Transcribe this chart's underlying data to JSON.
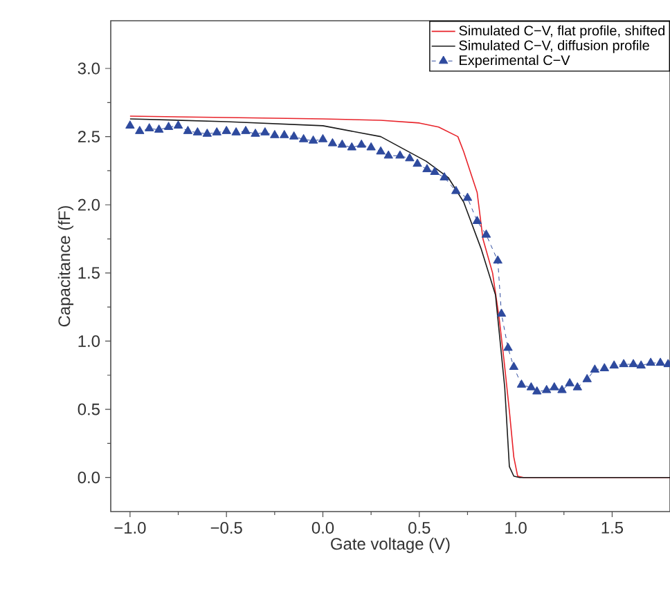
{
  "chart_data": {
    "type": "line",
    "xlabel": "Gate voltage (V)",
    "ylabel": "Capacitance (fF)",
    "xlim": [
      -1.1,
      1.8
    ],
    "ylim": [
      -0.25,
      3.35
    ],
    "xticks": [
      {
        "value": -1.0,
        "label": "−1.0"
      },
      {
        "value": -0.5,
        "label": "−0.5"
      },
      {
        "value": 0.0,
        "label": "0.0"
      },
      {
        "value": 0.5,
        "label": "0.5"
      },
      {
        "value": 1.0,
        "label": "1.0"
      },
      {
        "value": 1.5,
        "label": "1.5"
      }
    ],
    "yticks": [
      {
        "value": 0.0,
        "label": "0.0"
      },
      {
        "value": 0.5,
        "label": "0.5"
      },
      {
        "value": 1.0,
        "label": "1.0"
      },
      {
        "value": 1.5,
        "label": "1.5"
      },
      {
        "value": 2.0,
        "label": "2.0"
      },
      {
        "value": 2.5,
        "label": "2.5"
      },
      {
        "value": 3.0,
        "label": "3.0"
      }
    ],
    "legend": "top right",
    "grid": false,
    "series": [
      {
        "name": "Simulated C−V, flat profile, shifted",
        "color": "#e8232a",
        "marker": "none",
        "line_style": "solid",
        "x": [
          -1.0,
          -0.5,
          0.0,
          0.3,
          0.5,
          0.6,
          0.7,
          0.73,
          0.8,
          0.83,
          0.88,
          0.914,
          0.94,
          0.967,
          0.99,
          1.01,
          1.04,
          1.2,
          1.8
        ],
        "values": [
          2.65,
          2.64,
          2.63,
          2.62,
          2.6,
          2.57,
          2.5,
          2.39,
          2.09,
          1.75,
          1.5,
          1.17,
          0.85,
          0.49,
          0.15,
          0.01,
          0.0,
          0.0,
          0.0
        ]
      },
      {
        "name": "Simulated C−V, diffusion profile",
        "color": "#1a1a1a",
        "marker": "none",
        "line_style": "solid",
        "x": [
          -1.0,
          -0.5,
          0.0,
          0.3,
          0.535,
          0.65,
          0.73,
          0.82,
          0.895,
          0.943,
          0.967,
          0.99,
          1.02,
          1.2,
          1.8
        ],
        "values": [
          2.63,
          2.61,
          2.58,
          2.5,
          2.32,
          2.2,
          2.02,
          1.68,
          1.34,
          0.66,
          0.08,
          0.01,
          0.0,
          0.0,
          0.0
        ]
      },
      {
        "name": "Experimental C−V",
        "color": "#2e4a9e",
        "marker": "triangle",
        "line_style": "dashed",
        "x": [
          -1.0,
          -0.95,
          -0.9,
          -0.85,
          -0.8,
          -0.75,
          -0.7,
          -0.65,
          -0.6,
          -0.55,
          -0.5,
          -0.45,
          -0.4,
          -0.35,
          -0.3,
          -0.25,
          -0.2,
          -0.15,
          -0.1,
          -0.05,
          0.0,
          0.05,
          0.1,
          0.15,
          0.2,
          0.25,
          0.3,
          0.34,
          0.4,
          0.45,
          0.49,
          0.54,
          0.58,
          0.63,
          0.69,
          0.75,
          0.8,
          0.847,
          0.907,
          0.926,
          0.96,
          0.99,
          1.03,
          1.08,
          1.11,
          1.16,
          1.2,
          1.24,
          1.28,
          1.32,
          1.37,
          1.41,
          1.46,
          1.51,
          1.56,
          1.61,
          1.65,
          1.7,
          1.75,
          1.79
        ],
        "values": [
          2.58,
          2.54,
          2.56,
          2.55,
          2.57,
          2.58,
          2.54,
          2.53,
          2.52,
          2.53,
          2.54,
          2.53,
          2.54,
          2.52,
          2.53,
          2.51,
          2.51,
          2.5,
          2.48,
          2.47,
          2.48,
          2.45,
          2.44,
          2.42,
          2.44,
          2.42,
          2.39,
          2.36,
          2.36,
          2.34,
          2.3,
          2.26,
          2.24,
          2.2,
          2.1,
          2.05,
          1.88,
          1.78,
          1.59,
          1.2,
          0.95,
          0.81,
          0.68,
          0.66,
          0.63,
          0.64,
          0.66,
          0.64,
          0.69,
          0.66,
          0.72,
          0.79,
          0.8,
          0.82,
          0.83,
          0.83,
          0.82,
          0.84,
          0.84,
          0.83
        ]
      }
    ]
  }
}
